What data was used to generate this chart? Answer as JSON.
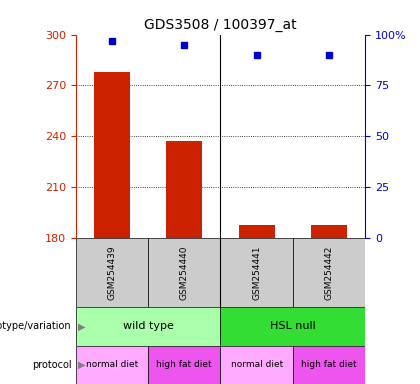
{
  "title": "GDS3508 / 100397_at",
  "samples": [
    "GSM254439",
    "GSM254440",
    "GSM254441",
    "GSM254442"
  ],
  "counts": [
    278,
    237,
    188,
    188
  ],
  "percentile_ranks": [
    97,
    95,
    90,
    90
  ],
  "ylim_left": [
    180,
    300
  ],
  "ylim_right": [
    0,
    100
  ],
  "yticks_left": [
    180,
    210,
    240,
    270,
    300
  ],
  "yticks_right": [
    0,
    25,
    50,
    75,
    100
  ],
  "ytick_labels_right": [
    "0",
    "25",
    "50",
    "75",
    "100%"
  ],
  "bar_color": "#cc2200",
  "dot_color": "#0000cc",
  "bar_bottom": 180,
  "genotype_groups": [
    {
      "label": "wild type",
      "cols": [
        0,
        1
      ],
      "color": "#aaffaa"
    },
    {
      "label": "HSL null",
      "cols": [
        2,
        3
      ],
      "color": "#33dd33"
    }
  ],
  "protocol_groups": [
    {
      "label": "normal diet",
      "col": 0,
      "color": "#ffaaff"
    },
    {
      "label": "high fat diet",
      "col": 1,
      "color": "#ee55ee"
    },
    {
      "label": "normal diet",
      "col": 2,
      "color": "#ffaaff"
    },
    {
      "label": "high fat diet",
      "col": 3,
      "color": "#ee55ee"
    }
  ],
  "legend_count_color": "#cc2200",
  "legend_dot_color": "#0000cc",
  "sample_box_color": "#cccccc",
  "left_axis_color": "#cc2200",
  "right_axis_color": "#0000cc",
  "background_color": "#ffffff",
  "gridline_ticks": [
    210,
    240,
    270
  ]
}
